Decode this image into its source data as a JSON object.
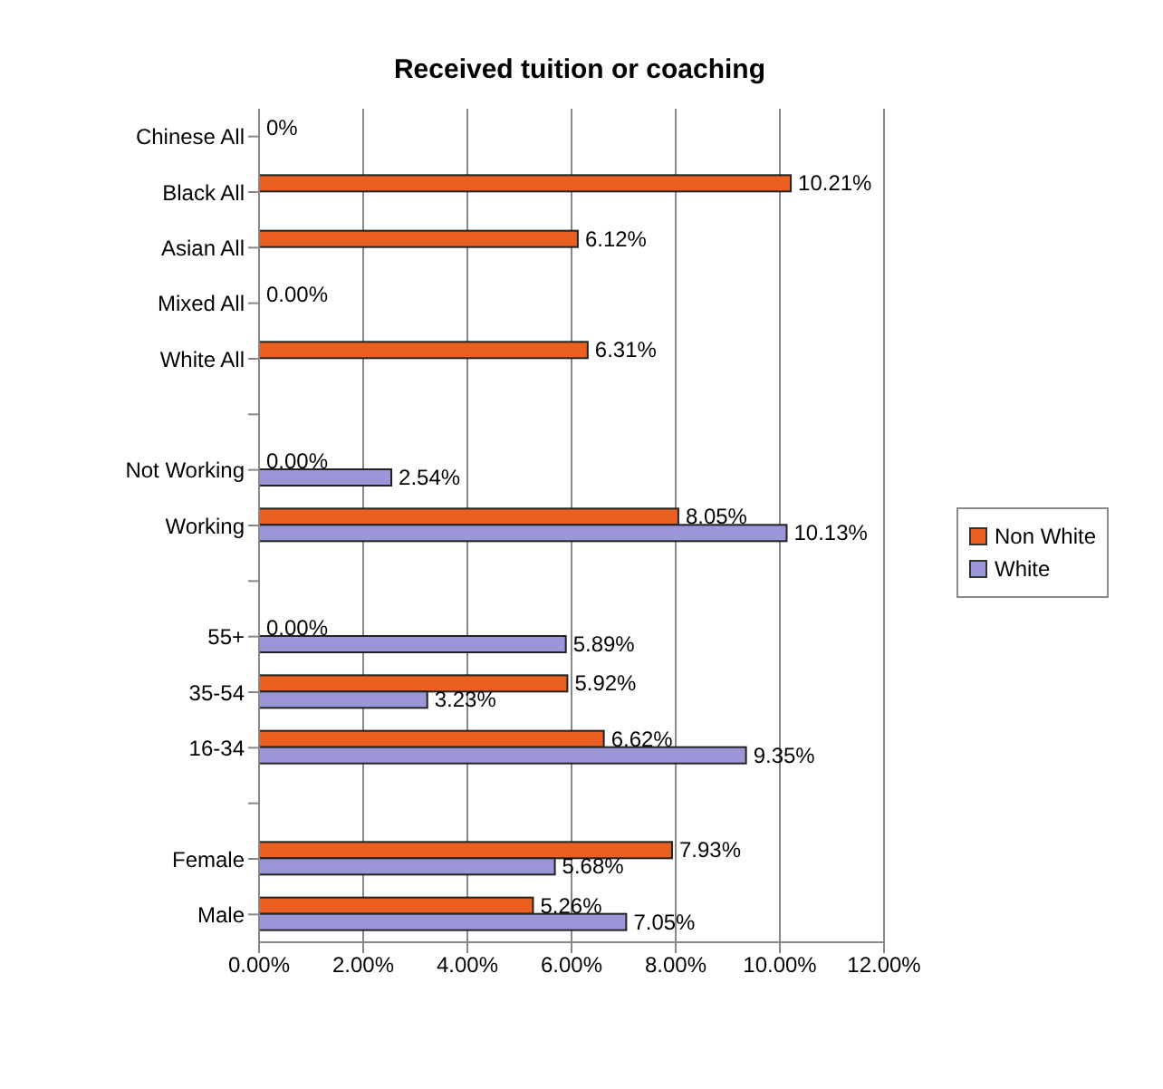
{
  "chart_data": {
    "type": "bar",
    "orientation": "horizontal",
    "title": "Received tuition or coaching",
    "categories": [
      "Chinese All",
      "Black All",
      "Asian All",
      "Mixed All",
      "White All",
      null,
      "Not Working",
      "Working",
      null,
      "55+",
      "35-54",
      "16-34",
      null,
      "Female",
      "Male"
    ],
    "series": [
      {
        "name": "Non White",
        "color": "#ea6020",
        "values": [
          0,
          10.21,
          6.12,
          0,
          6.31,
          null,
          0,
          8.05,
          null,
          0,
          5.92,
          6.62,
          null,
          7.93,
          5.26
        ],
        "value_labels": [
          "0%",
          "10.21%",
          "6.12%",
          "0.00%",
          "6.31%",
          null,
          "0.00%",
          "8.05%",
          null,
          "0.00%",
          "5.92%",
          "6.62%",
          null,
          "7.93%",
          "5.26%"
        ]
      },
      {
        "name": "White",
        "color": "#9a96d8",
        "values": [
          null,
          null,
          null,
          null,
          null,
          null,
          2.54,
          10.13,
          null,
          5.89,
          3.23,
          9.35,
          null,
          5.68,
          7.05
        ],
        "value_labels": [
          null,
          null,
          null,
          null,
          null,
          null,
          "2.54%",
          "10.13%",
          null,
          "5.89%",
          "3.23%",
          "9.35%",
          null,
          "5.68%",
          "7.05%"
        ]
      }
    ],
    "xlim": [
      0,
      12
    ],
    "xticks": [
      {
        "value": 0,
        "label": "0.00%"
      },
      {
        "value": 2,
        "label": "2.00%"
      },
      {
        "value": 4,
        "label": "4.00%"
      },
      {
        "value": 6,
        "label": "6.00%"
      },
      {
        "value": 8,
        "label": "8.00%"
      },
      {
        "value": 10,
        "label": "10.00%"
      },
      {
        "value": 12,
        "label": "12.00%"
      }
    ],
    "grid": "x",
    "legend": "right"
  }
}
